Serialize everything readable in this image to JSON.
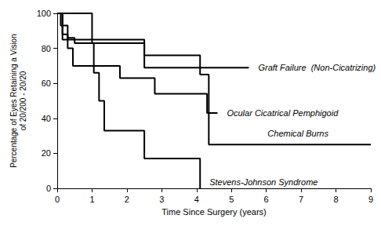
{
  "chart_data": {
    "type": "line",
    "x_label": "Time Since Surgery (years)",
    "y_label": "Percentage of Eyes Retaining a Vision\nof 20/200 - 20/20",
    "line_style": "step",
    "grid": false,
    "xlim": [
      0,
      9
    ],
    "xticks": [
      0,
      1,
      2,
      3,
      4,
      5,
      6,
      7,
      8,
      9
    ],
    "ylim": [
      0,
      100
    ],
    "yticks": [
      0,
      20,
      40,
      60,
      80,
      100
    ],
    "series": [
      {
        "name": "Graft Failure  (Non-Cicatrizing)",
        "color": "#000000",
        "x": [
          0,
          0.15,
          2.5,
          5.5
        ],
        "values": [
          100,
          85,
          69,
          69
        ]
      },
      {
        "name": "Ocular Cicatrical Pemphigoid",
        "color": "#000000",
        "x": [
          0,
          0.15,
          0.3,
          0.45,
          1.8,
          2.8,
          4.3,
          4.6
        ],
        "values": [
          100,
          88,
          80,
          70,
          63,
          54,
          43,
          43
        ]
      },
      {
        "name": "Chemical Burns",
        "color": "#000000",
        "x": [
          0,
          1.0,
          2.5,
          4.1,
          4.35,
          9
        ],
        "values": [
          100,
          83,
          76,
          65,
          25,
          25
        ]
      },
      {
        "name": "Stevens-Johnson Syndrome",
        "color": "#000000",
        "x": [
          0,
          0.1,
          0.3,
          0.5,
          1.05,
          1.2,
          1.35,
          2.5,
          4.1
        ],
        "values": [
          100,
          93,
          86,
          83,
          66,
          50,
          33,
          17,
          0
        ]
      }
    ]
  }
}
